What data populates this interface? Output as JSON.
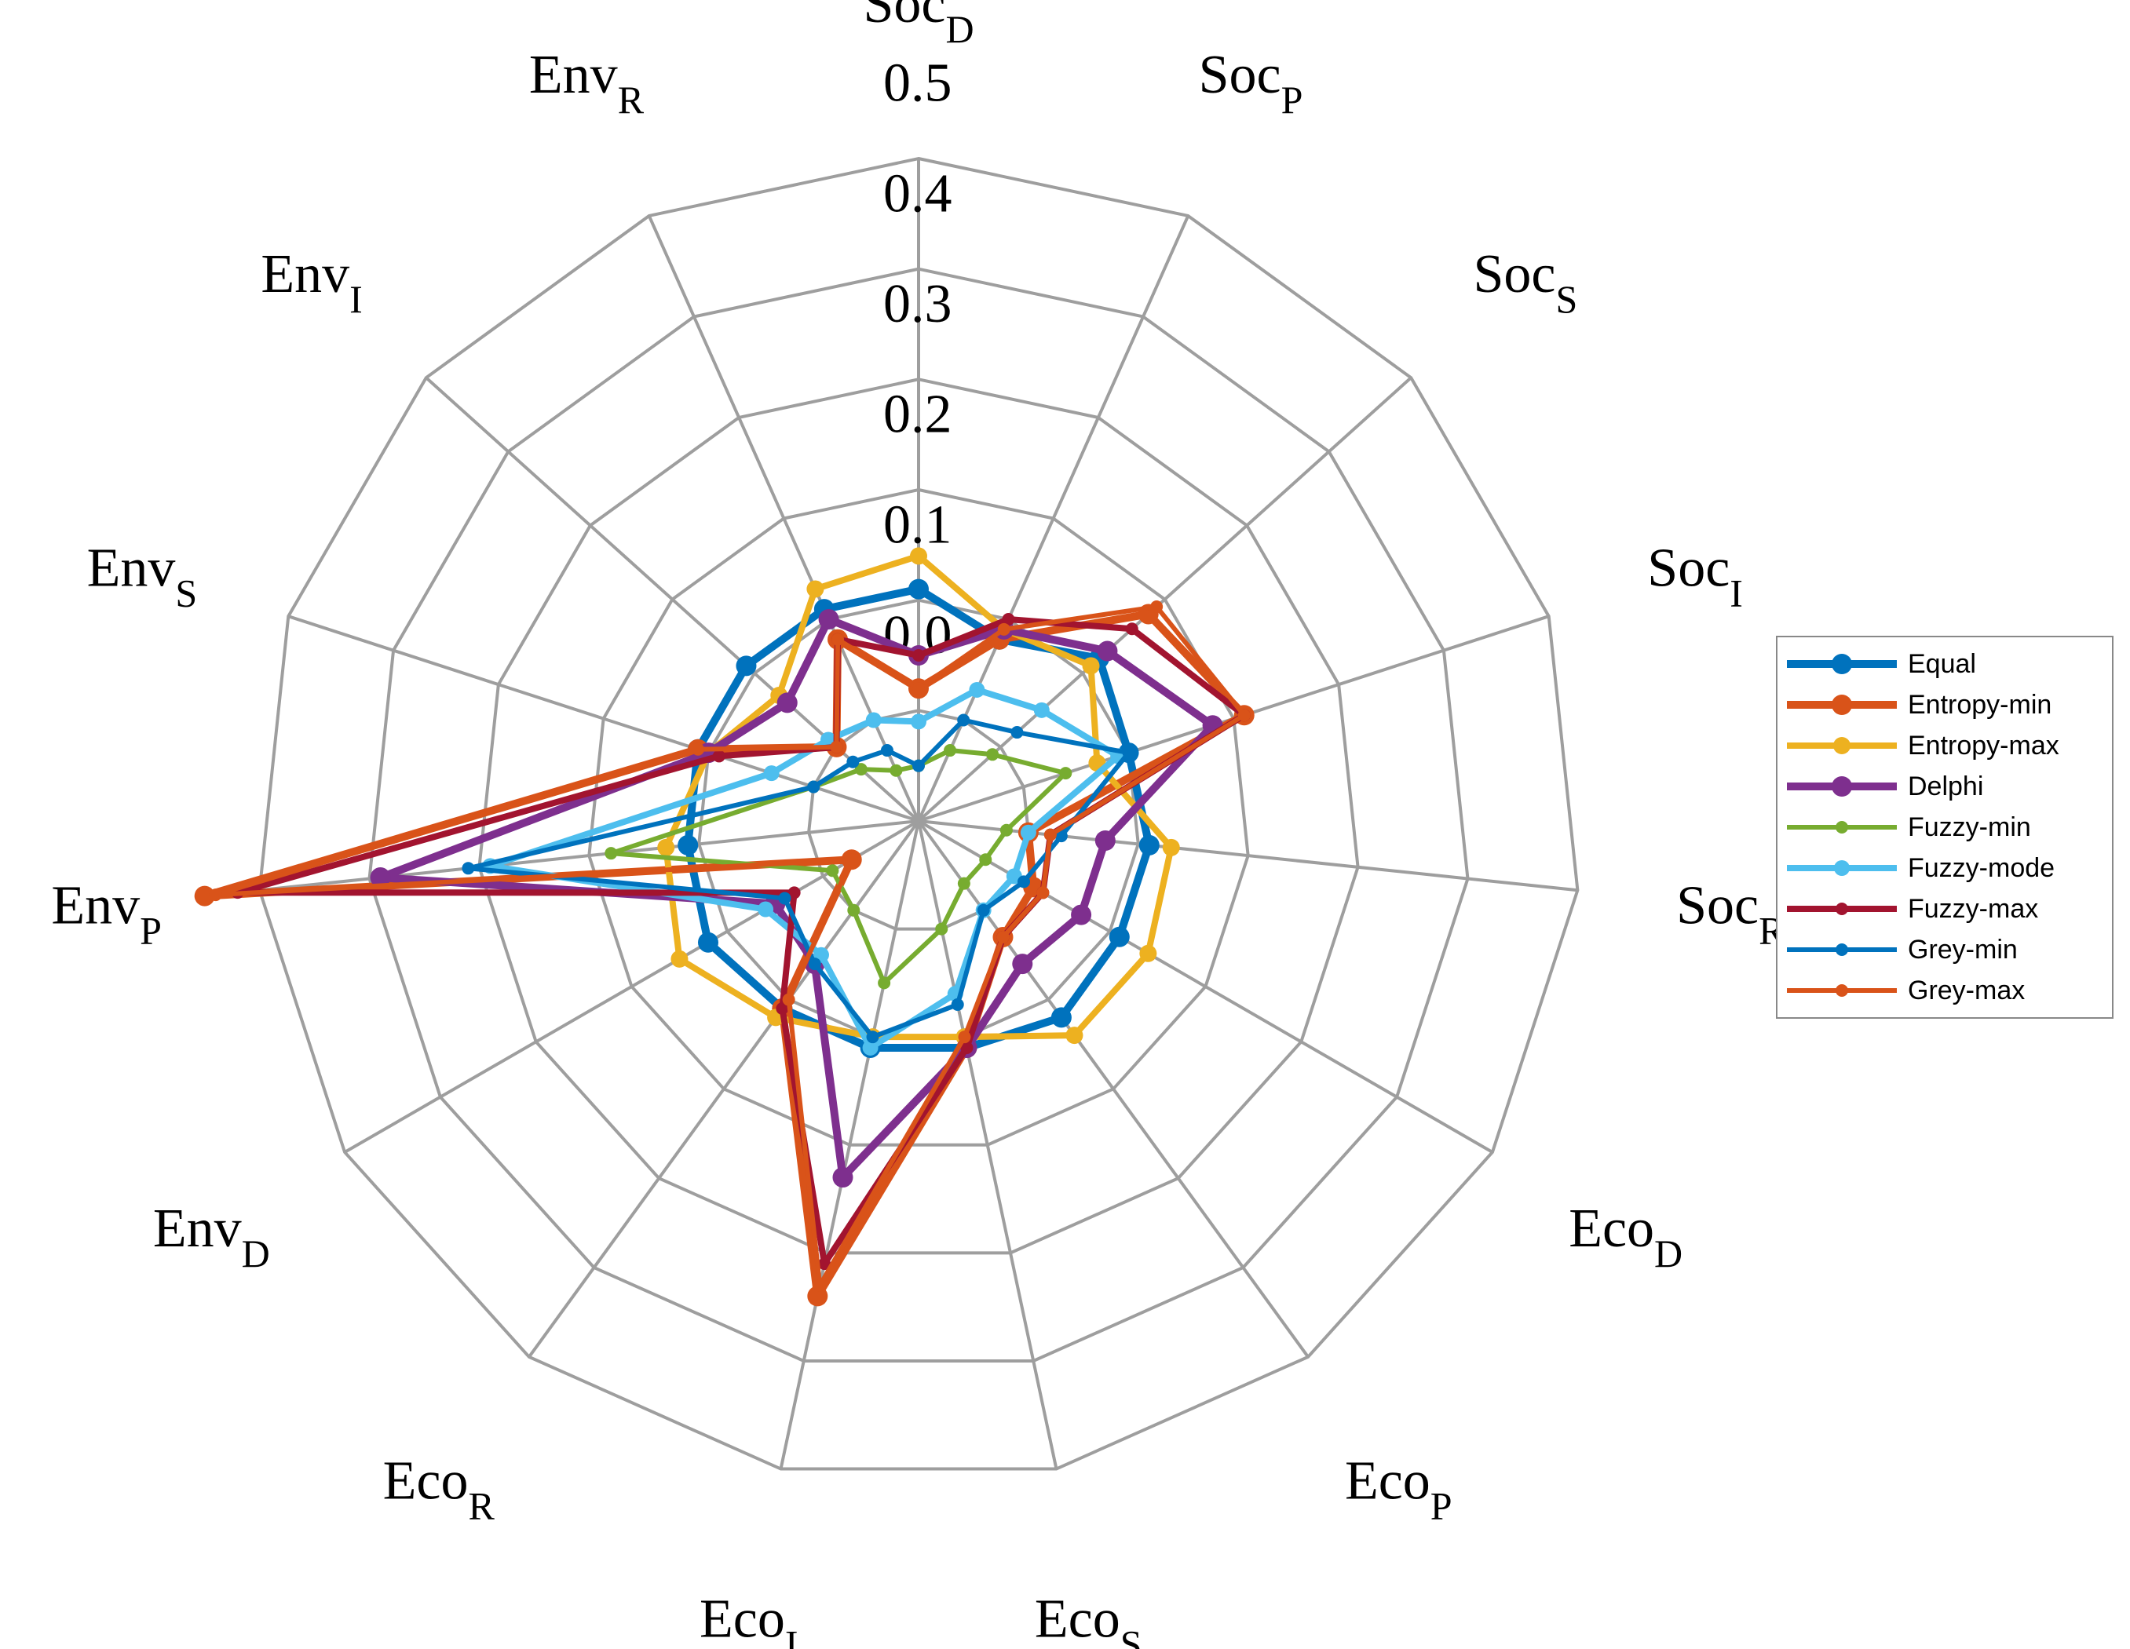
{
  "chart_data": {
    "type": "radar",
    "axes": [
      {
        "name": "Soc",
        "sub": "D"
      },
      {
        "name": "Soc",
        "sub": "P"
      },
      {
        "name": "Soc",
        "sub": "S"
      },
      {
        "name": "Soc",
        "sub": "I"
      },
      {
        "name": "Soc",
        "sub": "R"
      },
      {
        "name": "Eco",
        "sub": "D"
      },
      {
        "name": "Eco",
        "sub": "P"
      },
      {
        "name": "Eco",
        "sub": "S"
      },
      {
        "name": "Eco",
        "sub": "I"
      },
      {
        "name": "Eco",
        "sub": "R"
      },
      {
        "name": "Env",
        "sub": "D"
      },
      {
        "name": "Env",
        "sub": "P"
      },
      {
        "name": "Env",
        "sub": "S"
      },
      {
        "name": "Env",
        "sub": "I"
      },
      {
        "name": "Env",
        "sub": "R"
      }
    ],
    "rlim": [
      0,
      0.6
    ],
    "ticks": [
      "0.0",
      "0.1",
      "0.2",
      "0.3",
      "0.4",
      "0.5",
      "0.6"
    ],
    "grid": true,
    "legend_position": "right",
    "series": [
      {
        "name": "Equal",
        "color": "#0072BD",
        "width": 10,
        "marker": 26,
        "values": [
          0.21,
          0.18,
          0.22,
          0.2,
          0.21,
          0.21,
          0.22,
          0.21,
          0.21,
          0.21,
          0.22,
          0.21,
          0.21,
          0.21,
          0.21
        ]
      },
      {
        "name": "Entropy-min",
        "color": "#D95319",
        "width": 10,
        "marker": 26,
        "values": [
          0.12,
          0.18,
          0.28,
          0.31,
          0.1,
          0.12,
          0.13,
          0.21,
          0.44,
          0.21,
          0.07,
          0.65,
          0.21,
          0.1,
          0.18
        ]
      },
      {
        "name": "Entropy-max",
        "color": "#EDB120",
        "width": 8,
        "marker": 22,
        "values": [
          0.24,
          0.19,
          0.21,
          0.17,
          0.23,
          0.24,
          0.24,
          0.2,
          0.2,
          0.22,
          0.25,
          0.23,
          0.2,
          0.17,
          0.23
        ]
      },
      {
        "name": "Delphi",
        "color": "#7E2F8E",
        "width": 10,
        "marker": 26,
        "values": [
          0.15,
          0.19,
          0.23,
          0.28,
          0.17,
          0.17,
          0.16,
          0.21,
          0.33,
          0.16,
          0.15,
          0.49,
          0.2,
          0.16,
          0.2
        ]
      },
      {
        "name": "Fuzzy-min",
        "color": "#77AC30",
        "width": 6,
        "marker": 16,
        "values": [
          0.05,
          0.07,
          0.09,
          0.14,
          0.08,
          0.07,
          0.07,
          0.1,
          0.15,
          0.1,
          0.09,
          0.28,
          0.1,
          0.07,
          0.05
        ]
      },
      {
        "name": "Fuzzy-mode",
        "color": "#4DBEEE",
        "width": 8,
        "marker": 20,
        "values": [
          0.09,
          0.13,
          0.15,
          0.19,
          0.1,
          0.1,
          0.1,
          0.16,
          0.21,
          0.15,
          0.16,
          0.39,
          0.14,
          0.11,
          0.1
        ]
      },
      {
        "name": "Fuzzy-max",
        "color": "#A2142F",
        "width": 8,
        "marker": 16,
        "values": [
          0.15,
          0.2,
          0.26,
          0.31,
          0.12,
          0.13,
          0.13,
          0.21,
          0.41,
          0.21,
          0.13,
          0.62,
          0.19,
          0.1,
          0.18
        ]
      },
      {
        "name": "Grey-min",
        "color": "#0072BD",
        "width": 6,
        "marker": 16,
        "values": [
          0.05,
          0.1,
          0.12,
          0.2,
          0.13,
          0.11,
          0.1,
          0.17,
          0.2,
          0.16,
          0.14,
          0.41,
          0.1,
          0.08,
          0.07
        ]
      },
      {
        "name": "Grey-max",
        "color": "#D95319",
        "width": 6,
        "marker": 16,
        "values": [
          0.12,
          0.19,
          0.29,
          0.31,
          0.12,
          0.13,
          0.13,
          0.2,
          0.43,
          0.2,
          0.07,
          0.64,
          0.21,
          0.1,
          0.18
        ]
      }
    ]
  }
}
